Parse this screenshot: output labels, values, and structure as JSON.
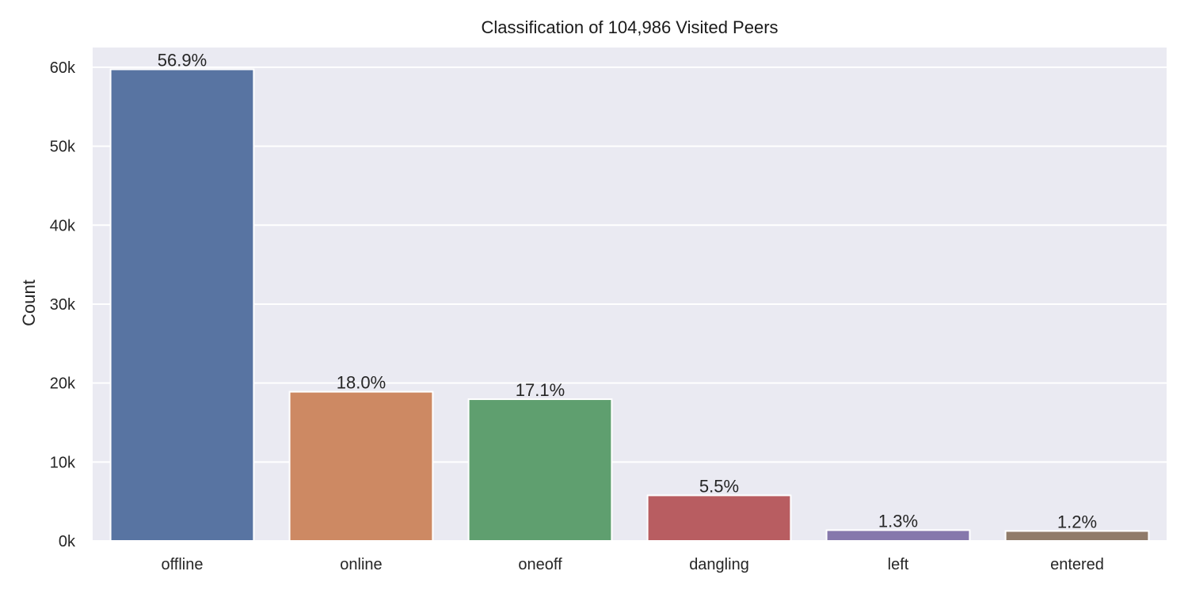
{
  "chart_data": {
    "type": "bar",
    "title": "Classification of 104,986 Visited Peers",
    "xlabel": "",
    "ylabel": "Count",
    "categories": [
      "offline",
      "online",
      "oneoff",
      "dangling",
      "left",
      "entered"
    ],
    "values": [
      59736,
      18897,
      17953,
      5774,
      1365,
      1260
    ],
    "data_labels": [
      "56.9%",
      "18.0%",
      "17.1%",
      "5.5%",
      "1.3%",
      "1.2%"
    ],
    "colors": [
      "#5874a2",
      "#cd8963",
      "#5f9f6f",
      "#b85d61",
      "#8678ac",
      "#907b69"
    ],
    "ylim": [
      0,
      62500
    ],
    "yticks": [
      0,
      10000,
      20000,
      30000,
      40000,
      50000,
      60000
    ],
    "ytick_labels": [
      "0k",
      "10k",
      "20k",
      "30k",
      "40k",
      "50k",
      "60k"
    ],
    "grid": true,
    "background": "#eaeaf2",
    "grid_color": "#ffffff",
    "legend": "none"
  }
}
